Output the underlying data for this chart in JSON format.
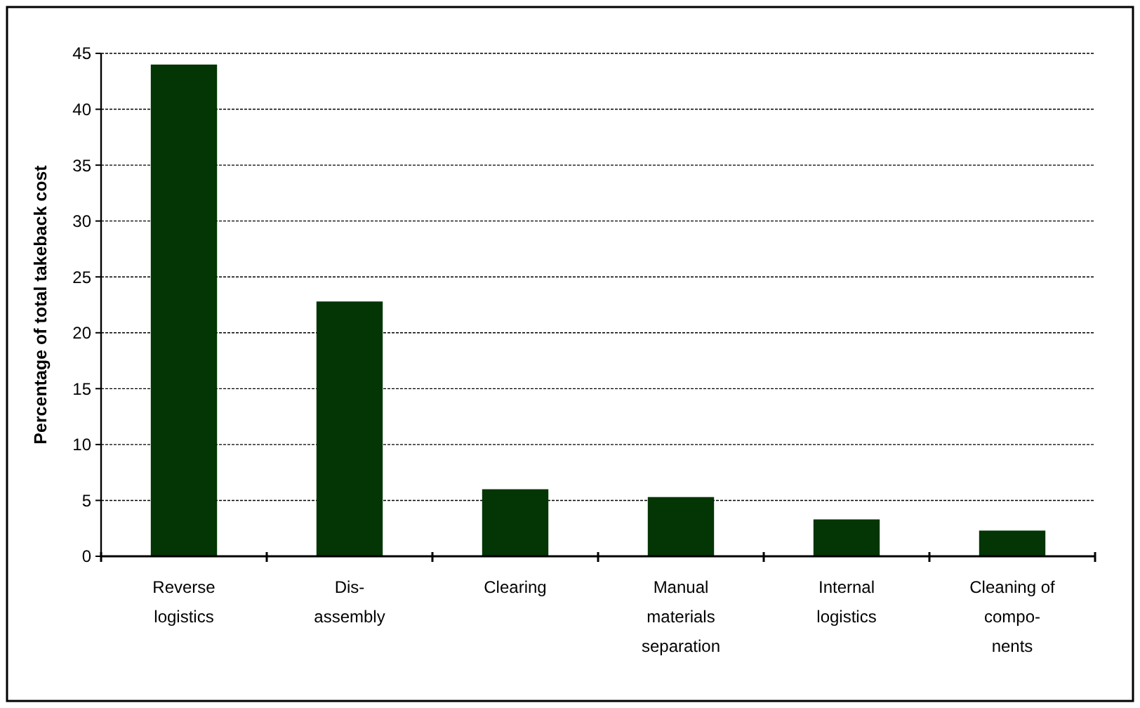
{
  "chart_data": {
    "type": "bar",
    "ylabel": "Percentage of total takeback cost",
    "categories": [
      "Reverse\nlogistics",
      "Dis-\nassembly",
      "Clearing",
      "Manual\nmaterials\nseparation",
      "Internal\nlogistics",
      "Cleaning of\ncompo-\nnents"
    ],
    "values": [
      44.0,
      22.8,
      6.0,
      5.3,
      3.3,
      2.3
    ],
    "color": "#033505",
    "ylim": [
      0,
      45
    ],
    "yticks": [
      0,
      5,
      10,
      15,
      20,
      25,
      30,
      35,
      40,
      45
    ],
    "grid": "y"
  }
}
